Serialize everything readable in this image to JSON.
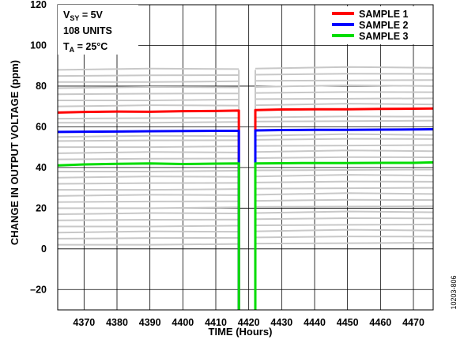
{
  "chart_data": {
    "type": "line",
    "xlabel": "TIME (Hours)",
    "ylabel": "CHANGE IN OUTPUT VOLTAGE (ppm)",
    "xlim": [
      4362,
      4476
    ],
    "ylim": [
      -30,
      120
    ],
    "x_ticks": [
      4370,
      4380,
      4390,
      4400,
      4410,
      4420,
      4430,
      4440,
      4450,
      4460,
      4470
    ],
    "y_ticks": [
      120,
      100,
      80,
      60,
      40,
      20,
      0,
      -20
    ],
    "y_tick_labels": [
      "120",
      "100",
      "80",
      "60",
      "40",
      "20",
      "0",
      "–20"
    ],
    "grid": true,
    "conditions": {
      "line1_main": "V",
      "line1_sub": "SY",
      "line1_rest": " = 5V",
      "line2": "108 UNITS",
      "line3_main": "T",
      "line3_sub": "A",
      "line3_rest": " = 25°C"
    },
    "legend_position": "top-right",
    "gap_hours": [
      4417,
      4422
    ],
    "series": [
      {
        "name": "SAMPLE 1",
        "color": "#ff0000",
        "segments": [
          {
            "x": [
              4362,
              4370,
              4380,
              4390,
              4400,
              4410,
              4417
            ],
            "y": [
              67,
              67.3,
              67.5,
              67.4,
              67.7,
              67.8,
              68
            ]
          },
          {
            "x": [
              4422,
              4430,
              4440,
              4450,
              4460,
              4470,
              4476
            ],
            "y": [
              68.2,
              68.5,
              68.6,
              68.6,
              68.8,
              68.9,
              69
            ]
          }
        ]
      },
      {
        "name": "SAMPLE 2",
        "color": "#0000ff",
        "segments": [
          {
            "x": [
              4362,
              4370,
              4380,
              4390,
              4400,
              4410,
              4417
            ],
            "y": [
              57.5,
              57.6,
              57.7,
              57.8,
              57.9,
              58,
              58
            ]
          },
          {
            "x": [
              4422,
              4430,
              4440,
              4450,
              4460,
              4470,
              4476
            ],
            "y": [
              58.2,
              58.4,
              58.5,
              58.5,
              58.6,
              58.7,
              58.8
            ]
          }
        ]
      },
      {
        "name": "SAMPLE 3",
        "color": "#00dd00",
        "segments": [
          {
            "x": [
              4362,
              4370,
              4380,
              4390,
              4400,
              4410,
              4417
            ],
            "y": [
              41,
              41.5,
              41.8,
              42,
              41.7,
              41.9,
              42
            ]
          },
          {
            "x": [
              4422,
              4430,
              4440,
              4450,
              4460,
              4470,
              4476
            ],
            "y": [
              42,
              42.1,
              42.2,
              42.2,
              42.3,
              42.3,
              42.5
            ]
          }
        ]
      }
    ],
    "background_units": {
      "color": "#c8c8c8",
      "levels": [
        2,
        5,
        8,
        11,
        14,
        17,
        20,
        23,
        26,
        29,
        32,
        35,
        38,
        44,
        47,
        50,
        53,
        55,
        62,
        64,
        70,
        73,
        76,
        79,
        82,
        85,
        88
      ]
    }
  },
  "figure_id": "10203-806"
}
